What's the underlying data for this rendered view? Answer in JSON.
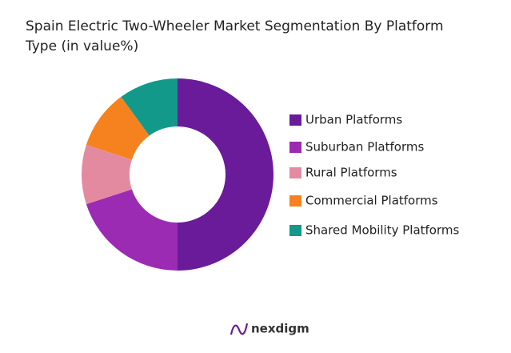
{
  "chart_data": {
    "type": "donut",
    "title_lines": [
      "Spain Electric Two-Wheeler Market Segmentation By Platform",
      "Type (in value%)"
    ],
    "categories": [
      "Urban Platforms",
      "Suburban Platforms",
      "Rural Platforms",
      "Commercial Platforms",
      "Shared Mobility Platforms"
    ],
    "values": [
      50,
      20,
      10,
      10,
      10
    ],
    "colors": [
      "#6a1b9a",
      "#9b2bb3",
      "#e48aa0",
      "#f5821f",
      "#12998a"
    ]
  },
  "footer": {
    "brand": "nexdigm"
  }
}
